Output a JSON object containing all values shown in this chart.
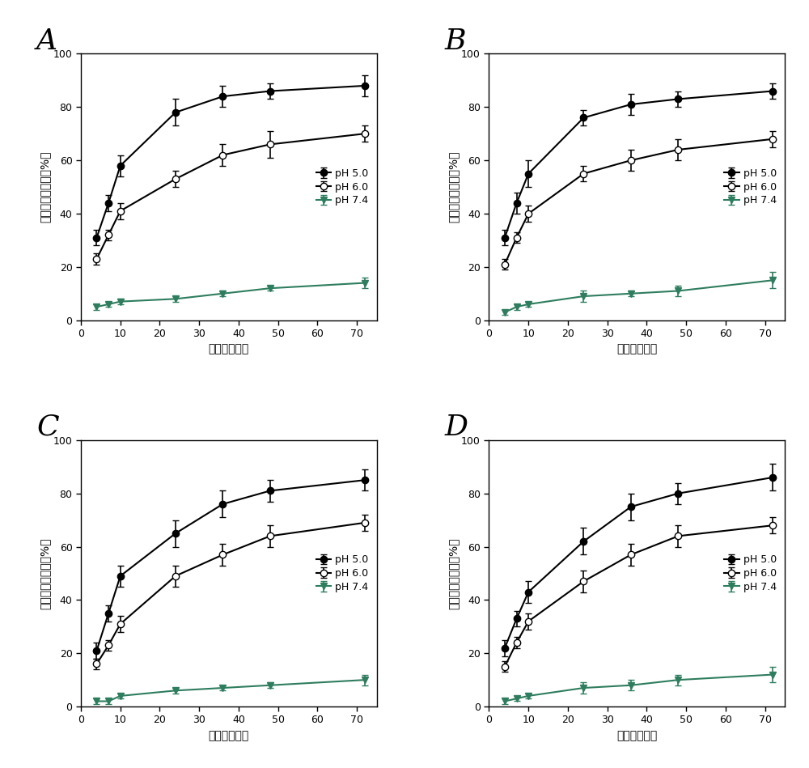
{
  "panels": [
    "A",
    "B",
    "C",
    "D"
  ],
  "x_values": [
    4,
    7,
    10,
    24,
    36,
    48,
    72
  ],
  "xlabel": "时间（小时）",
  "ylabel": "抗原累积释放量（%）",
  "ylim": [
    0,
    100
  ],
  "yticks": [
    0,
    20,
    40,
    60,
    80,
    100
  ],
  "xticks": [
    0,
    10,
    20,
    30,
    40,
    50,
    60,
    70
  ],
  "legend_labels": [
    "pH 5.0",
    "pH 6.0",
    "pH 7.4"
  ],
  "A": {
    "ph50_y": [
      31,
      44,
      58,
      78,
      84,
      86,
      88
    ],
    "ph50_e": [
      3,
      3,
      4,
      5,
      4,
      3,
      4
    ],
    "ph60_y": [
      23,
      32,
      41,
      53,
      62,
      66,
      70
    ],
    "ph60_e": [
      2,
      2,
      3,
      3,
      4,
      5,
      3
    ],
    "ph74_y": [
      5,
      6,
      7,
      8,
      10,
      12,
      14
    ],
    "ph74_e": [
      1,
      1,
      1,
      1,
      1,
      1,
      2
    ]
  },
  "B": {
    "ph50_y": [
      31,
      44,
      55,
      76,
      81,
      83,
      86
    ],
    "ph50_e": [
      3,
      4,
      5,
      3,
      4,
      3,
      3
    ],
    "ph60_y": [
      21,
      31,
      40,
      55,
      60,
      64,
      68
    ],
    "ph60_e": [
      2,
      2,
      3,
      3,
      4,
      4,
      3
    ],
    "ph74_y": [
      3,
      5,
      6,
      9,
      10,
      11,
      15
    ],
    "ph74_e": [
      1,
      1,
      1,
      2,
      1,
      2,
      3
    ]
  },
  "C": {
    "ph50_y": [
      21,
      35,
      49,
      65,
      76,
      81,
      85
    ],
    "ph50_e": [
      3,
      3,
      4,
      5,
      5,
      4,
      4
    ],
    "ph60_y": [
      16,
      23,
      31,
      49,
      57,
      64,
      69
    ],
    "ph60_e": [
      2,
      2,
      3,
      4,
      4,
      4,
      3
    ],
    "ph74_y": [
      2,
      2,
      4,
      6,
      7,
      8,
      10
    ],
    "ph74_e": [
      1,
      1,
      1,
      1,
      1,
      1,
      2
    ]
  },
  "D": {
    "ph50_y": [
      22,
      33,
      43,
      62,
      75,
      80,
      86
    ],
    "ph50_e": [
      3,
      3,
      4,
      5,
      5,
      4,
      5
    ],
    "ph60_y": [
      15,
      24,
      32,
      47,
      57,
      64,
      68
    ],
    "ph60_e": [
      2,
      2,
      3,
      4,
      4,
      4,
      3
    ],
    "ph74_y": [
      2,
      3,
      4,
      7,
      8,
      10,
      12
    ],
    "ph74_e": [
      1,
      1,
      1,
      2,
      2,
      2,
      3
    ]
  },
  "color_ph50": "#000000",
  "color_ph60": "#000000",
  "color_ph74": "#2e7d5e",
  "line_color_ph74": "#2e7d5e",
  "background_color": "#ffffff",
  "panel_label_fontsize": 26,
  "axis_label_fontsize": 10,
  "tick_fontsize": 9,
  "legend_fontsize": 9,
  "markersize": 6,
  "linewidth": 1.5,
  "capsize": 3,
  "elinewidth": 1.2
}
